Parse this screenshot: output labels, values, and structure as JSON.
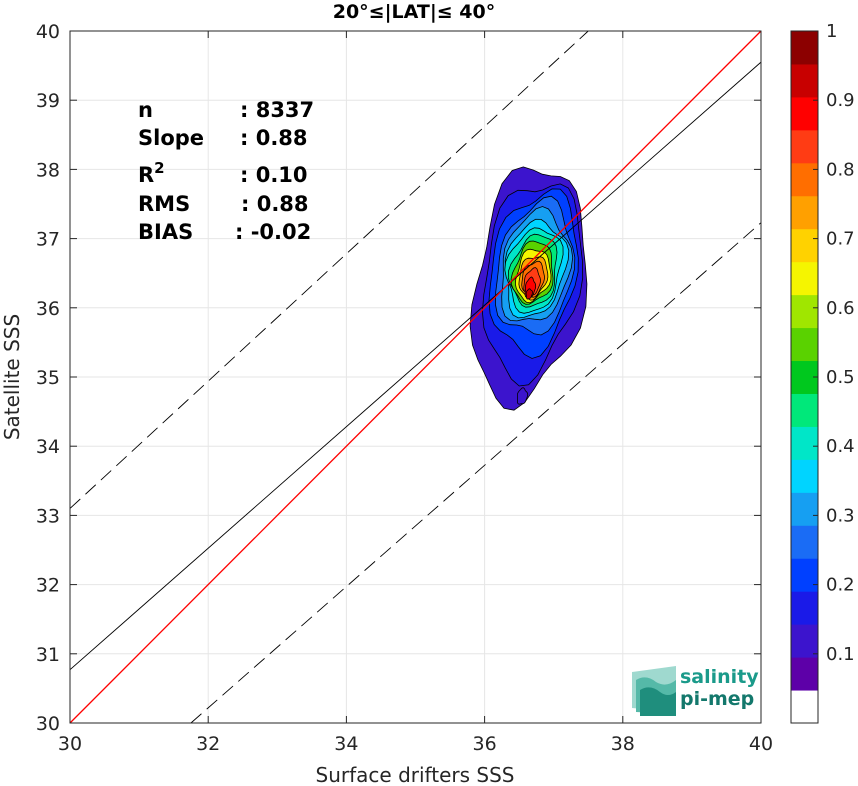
{
  "chart_data": {
    "type": "contour-scatter",
    "title": "20°≤|LAT|≤ 40°",
    "xlabel": "Surface drifters SSS",
    "ylabel": "Satellite SSS",
    "xlim": [
      30,
      40
    ],
    "ylim": [
      30,
      40
    ],
    "xticks": [
      "30",
      "32",
      "34",
      "36",
      "38",
      "40"
    ],
    "yticks": [
      "30",
      "31",
      "32",
      "33",
      "34",
      "35",
      "36",
      "37",
      "38",
      "39",
      "40"
    ],
    "grid": true,
    "stats": [
      {
        "label": "n",
        "value": ": 8337"
      },
      {
        "label": "Slope",
        "value": ": 0.88"
      },
      {
        "label": "R",
        "sup": "2",
        "value": ": 0.10"
      },
      {
        "label": "RMS",
        "value": ": 0.88"
      },
      {
        "label": "BIAS",
        "value": ": -0.02"
      }
    ],
    "identity_line": {
      "x": [
        30,
        40
      ],
      "y": [
        30,
        40
      ],
      "color": "#ff0000"
    },
    "fit_line": {
      "x": [
        30,
        40
      ],
      "y": [
        30.77,
        39.55
      ],
      "color": "#000000"
    },
    "envelope_lines": [
      {
        "x": [
          30,
          40
        ],
        "y": [
          33.1,
          42.3
        ],
        "style": "dashed"
      },
      {
        "x": [
          31.75,
          40
        ],
        "y": [
          30,
          37.23
        ],
        "style": "dashed"
      }
    ],
    "density_contours": {
      "center": [
        36.5,
        36.2
      ],
      "levels": [
        0.05,
        0.1,
        0.2,
        0.3,
        0.4,
        0.5,
        0.6,
        0.7,
        0.8,
        0.9
      ]
    },
    "colorbar": {
      "ticks": [
        "0.1",
        "0.2",
        "0.3",
        "0.4",
        "0.5",
        "0.6",
        "0.7",
        "0.8",
        "0.9",
        "1"
      ],
      "colors": [
        "#ffffff",
        "#5d00a8",
        "#3c14cd",
        "#1a1ae8",
        "#0040ff",
        "#1a6cf5",
        "#169ff2",
        "#00d4ff",
        "#00e6c8",
        "#00e87a",
        "#00c81e",
        "#5ad200",
        "#a0e600",
        "#f5f500",
        "#ffd200",
        "#ffa000",
        "#ff6e00",
        "#ff3c14",
        "#ff0000",
        "#c80000",
        "#8c0000"
      ]
    }
  },
  "logo": {
    "line1": "salinity",
    "line2": "pi-mep"
  }
}
